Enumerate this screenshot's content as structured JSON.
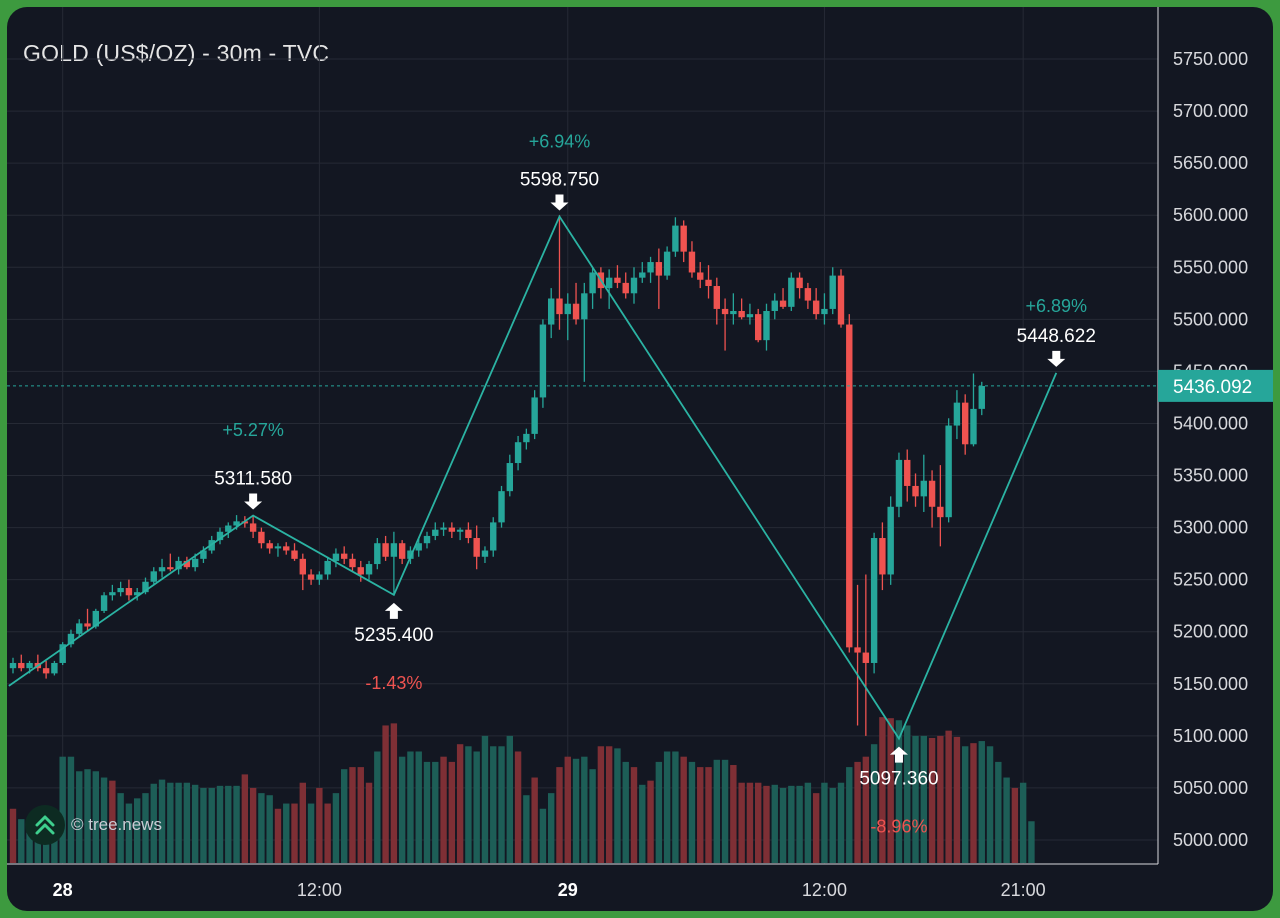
{
  "colors": {
    "background": "#131722",
    "up": "#26a69a",
    "down": "#ef5350",
    "volume_up": "#1d5e57",
    "volume_down": "#7e2f35",
    "grid": "#262a35",
    "zigzag": "#2bb3a3",
    "last_price_bg": "#26a69a"
  },
  "watermark": {
    "icon": "double-chevron-up-icon",
    "text": "© tree.news"
  },
  "chart_data": {
    "type": "candlestick",
    "title": "GOLD (US$/OZ) - 30m - TVC",
    "ylim": [
      4980,
      5780
    ],
    "y_ticks": [
      "5750.000",
      "5700.000",
      "5650.000",
      "5600.000",
      "5550.000",
      "5500.000",
      "5450.000",
      "5400.000",
      "5350.000",
      "5300.000",
      "5250.000",
      "5200.000",
      "5150.000",
      "5100.000",
      "5050.000",
      "5000.000"
    ],
    "x_ticks": [
      {
        "label": "28",
        "index": 6,
        "bold": true
      },
      {
        "label": "12:00",
        "index": 37,
        "bold": false
      },
      {
        "label": "29",
        "index": 67,
        "bold": true
      },
      {
        "label": "12:00",
        "index": 98,
        "bold": false
      },
      {
        "label": "21:00",
        "index": 122,
        "bold": false
      }
    ],
    "last_price": {
      "label": "5436.092",
      "value": 5436.092
    },
    "zigzag": [
      {
        "index": -0.5,
        "value": 5148
      },
      {
        "index": 29,
        "value": 5311.58
      },
      {
        "index": 46,
        "value": 5235.4
      },
      {
        "index": 66,
        "value": 5598.75
      },
      {
        "index": 107,
        "value": 5097.36
      },
      {
        "index": 126,
        "value": 5448.622
      }
    ],
    "pivots": [
      {
        "label": "5311.580",
        "index": 29,
        "value": 5311.58,
        "direction": "down",
        "label_position": "above"
      },
      {
        "label": "5235.400",
        "index": 46,
        "value": 5235.4,
        "direction": "up",
        "label_position": "below"
      },
      {
        "label": "5598.750",
        "index": 66,
        "value": 5598.75,
        "direction": "down",
        "label_position": "above"
      },
      {
        "label": "5097.360",
        "index": 107,
        "value": 5097.36,
        "direction": "up",
        "label_position": "below"
      },
      {
        "label": "5448.622",
        "index": 126,
        "value": 5448.622,
        "direction": "down",
        "label_position": "above"
      }
    ],
    "swing_labels": [
      {
        "label": "+5.27%",
        "index": 29,
        "value": 5388,
        "positive": true
      },
      {
        "label": "-1.43%",
        "index": 46,
        "value": 5145,
        "positive": false
      },
      {
        "label": "+6.94%",
        "index": 66,
        "value": 5665,
        "positive": true
      },
      {
        "label": "-8.96%",
        "index": 107,
        "value": 5007,
        "positive": false
      },
      {
        "label": "+6.89%",
        "index": 126,
        "value": 5507,
        "positive": true
      }
    ],
    "candles": [
      [
        5165,
        5175,
        5160,
        5170
      ],
      [
        5170,
        5178,
        5162,
        5165
      ],
      [
        5165,
        5172,
        5160,
        5170
      ],
      [
        5170,
        5178,
        5162,
        5165
      ],
      [
        5165,
        5172,
        5155,
        5160
      ],
      [
        5160,
        5172,
        5158,
        5170
      ],
      [
        5170,
        5190,
        5168,
        5188
      ],
      [
        5188,
        5202,
        5185,
        5198
      ],
      [
        5198,
        5212,
        5195,
        5208
      ],
      [
        5208,
        5222,
        5200,
        5205
      ],
      [
        5205,
        5222,
        5203,
        5220
      ],
      [
        5220,
        5238,
        5218,
        5235
      ],
      [
        5235,
        5245,
        5230,
        5238
      ],
      [
        5238,
        5248,
        5234,
        5242
      ],
      [
        5242,
        5250,
        5230,
        5235
      ],
      [
        5235,
        5242,
        5230,
        5238
      ],
      [
        5238,
        5252,
        5236,
        5248
      ],
      [
        5248,
        5262,
        5246,
        5258
      ],
      [
        5258,
        5270,
        5252,
        5262
      ],
      [
        5262,
        5275,
        5258,
        5260
      ],
      [
        5260,
        5272,
        5255,
        5268
      ],
      [
        5268,
        5272,
        5260,
        5262
      ],
      [
        5262,
        5275,
        5258,
        5270
      ],
      [
        5270,
        5282,
        5266,
        5278
      ],
      [
        5278,
        5292,
        5275,
        5288
      ],
      [
        5288,
        5300,
        5284,
        5296
      ],
      [
        5296,
        5305,
        5290,
        5302
      ],
      [
        5302,
        5312,
        5298,
        5306
      ],
      [
        5306,
        5311,
        5300,
        5304
      ],
      [
        5304,
        5311,
        5290,
        5296
      ],
      [
        5296,
        5300,
        5280,
        5285
      ],
      [
        5285,
        5288,
        5275,
        5280
      ],
      [
        5280,
        5285,
        5272,
        5282
      ],
      [
        5282,
        5286,
        5274,
        5278
      ],
      [
        5278,
        5285,
        5268,
        5270
      ],
      [
        5270,
        5275,
        5240,
        5255
      ],
      [
        5255,
        5260,
        5245,
        5250
      ],
      [
        5250,
        5258,
        5245,
        5255
      ],
      [
        5255,
        5272,
        5250,
        5268
      ],
      [
        5268,
        5280,
        5262,
        5275
      ],
      [
        5275,
        5282,
        5265,
        5270
      ],
      [
        5270,
        5275,
        5258,
        5262
      ],
      [
        5262,
        5268,
        5248,
        5255
      ],
      [
        5255,
        5268,
        5250,
        5265
      ],
      [
        5265,
        5290,
        5260,
        5285
      ],
      [
        5285,
        5292,
        5268,
        5272
      ],
      [
        5272,
        5296,
        5236,
        5285
      ],
      [
        5285,
        5288,
        5265,
        5270
      ],
      [
        5270,
        5282,
        5265,
        5278
      ],
      [
        5278,
        5290,
        5272,
        5285
      ],
      [
        5285,
        5296,
        5280,
        5292
      ],
      [
        5292,
        5305,
        5288,
        5298
      ],
      [
        5298,
        5305,
        5292,
        5300
      ],
      [
        5300,
        5305,
        5290,
        5296
      ],
      [
        5296,
        5300,
        5288,
        5298
      ],
      [
        5298,
        5305,
        5285,
        5290
      ],
      [
        5290,
        5302,
        5260,
        5272
      ],
      [
        5272,
        5282,
        5266,
        5278
      ],
      [
        5278,
        5310,
        5272,
        5305
      ],
      [
        5305,
        5340,
        5300,
        5335
      ],
      [
        5335,
        5370,
        5330,
        5362
      ],
      [
        5362,
        5388,
        5355,
        5382
      ],
      [
        5382,
        5395,
        5375,
        5390
      ],
      [
        5390,
        5432,
        5385,
        5425
      ],
      [
        5425,
        5500,
        5415,
        5495
      ],
      [
        5495,
        5530,
        5482,
        5520
      ],
      [
        5520,
        5600,
        5490,
        5505
      ],
      [
        5505,
        5525,
        5480,
        5515
      ],
      [
        5515,
        5535,
        5495,
        5500
      ],
      [
        5500,
        5535,
        5440,
        5525
      ],
      [
        5525,
        5550,
        5510,
        5545
      ],
      [
        5545,
        5550,
        5520,
        5530
      ],
      [
        5530,
        5548,
        5510,
        5540
      ],
      [
        5540,
        5552,
        5530,
        5535
      ],
      [
        5535,
        5545,
        5520,
        5525
      ],
      [
        5525,
        5550,
        5515,
        5540
      ],
      [
        5540,
        5555,
        5535,
        5545
      ],
      [
        5545,
        5560,
        5535,
        5555
      ],
      [
        5555,
        5568,
        5510,
        5542
      ],
      [
        5542,
        5570,
        5538,
        5565
      ],
      [
        5565,
        5598,
        5560,
        5590
      ],
      [
        5590,
        5595,
        5555,
        5565
      ],
      [
        5565,
        5575,
        5540,
        5545
      ],
      [
        5545,
        5555,
        5530,
        5538
      ],
      [
        5538,
        5552,
        5520,
        5532
      ],
      [
        5532,
        5540,
        5495,
        5510
      ],
      [
        5510,
        5520,
        5470,
        5505
      ],
      [
        5505,
        5525,
        5495,
        5508
      ],
      [
        5508,
        5520,
        5500,
        5502
      ],
      [
        5502,
        5515,
        5495,
        5505
      ],
      [
        5505,
        5510,
        5478,
        5480
      ],
      [
        5480,
        5515,
        5470,
        5508
      ],
      [
        5508,
        5525,
        5500,
        5518
      ],
      [
        5518,
        5530,
        5510,
        5512
      ],
      [
        5512,
        5545,
        5508,
        5540
      ],
      [
        5540,
        5545,
        5520,
        5530
      ],
      [
        5530,
        5535,
        5510,
        5518
      ],
      [
        5518,
        5530,
        5500,
        5505
      ],
      [
        5505,
        5525,
        5495,
        5510
      ],
      [
        5510,
        5550,
        5505,
        5542
      ],
      [
        5542,
        5548,
        5492,
        5495
      ],
      [
        5495,
        5505,
        5180,
        5185
      ],
      [
        5185,
        5245,
        5110,
        5180
      ],
      [
        5180,
        5255,
        5100,
        5170
      ],
      [
        5170,
        5295,
        5160,
        5290
      ],
      [
        5290,
        5305,
        5240,
        5255
      ],
      [
        5255,
        5330,
        5245,
        5320
      ],
      [
        5320,
        5372,
        5310,
        5365
      ],
      [
        5365,
        5375,
        5325,
        5340
      ],
      [
        5340,
        5352,
        5320,
        5330
      ],
      [
        5330,
        5370,
        5315,
        5345
      ],
      [
        5345,
        5355,
        5300,
        5320
      ],
      [
        5320,
        5360,
        5282,
        5310
      ],
      [
        5310,
        5405,
        5305,
        5398
      ],
      [
        5398,
        5432,
        5385,
        5420
      ],
      [
        5420,
        5428,
        5370,
        5380
      ],
      [
        5380,
        5448,
        5378,
        5414
      ],
      [
        5414,
        5440,
        5408,
        5436
      ]
    ],
    "volume_bars": [
      [
        5030,
        false
      ],
      [
        5020,
        true
      ],
      [
        5015,
        true
      ],
      [
        5020,
        true
      ],
      [
        5022,
        true
      ],
      [
        5025,
        true
      ],
      [
        5080,
        true
      ],
      [
        5080,
        true
      ],
      [
        5066,
        true
      ],
      [
        5068,
        true
      ],
      [
        5066,
        true
      ],
      [
        5060,
        true
      ],
      [
        5057,
        false
      ],
      [
        5045,
        true
      ],
      [
        5035,
        true
      ],
      [
        5040,
        true
      ],
      [
        5045,
        true
      ],
      [
        5054,
        true
      ],
      [
        5058,
        true
      ],
      [
        5055,
        true
      ],
      [
        5055,
        true
      ],
      [
        5055,
        true
      ],
      [
        5053,
        true
      ],
      [
        5050,
        true
      ],
      [
        5050,
        true
      ],
      [
        5052,
        true
      ],
      [
        5052,
        true
      ],
      [
        5052,
        true
      ],
      [
        5063,
        false
      ],
      [
        5050,
        false
      ],
      [
        5045,
        true
      ],
      [
        5043,
        true
      ],
      [
        5030,
        false
      ],
      [
        5035,
        true
      ],
      [
        5035,
        false
      ],
      [
        5055,
        false
      ],
      [
        5035,
        true
      ],
      [
        5050,
        false
      ],
      [
        5035,
        false
      ],
      [
        5045,
        true
      ],
      [
        5068,
        true
      ],
      [
        5070,
        false
      ],
      [
        5070,
        false
      ],
      [
        5055,
        false
      ],
      [
        5085,
        true
      ],
      [
        5110,
        false
      ],
      [
        5112,
        false
      ],
      [
        5080,
        true
      ],
      [
        5085,
        true
      ],
      [
        5085,
        true
      ],
      [
        5075,
        true
      ],
      [
        5075,
        true
      ],
      [
        5080,
        false
      ],
      [
        5075,
        false
      ],
      [
        5092,
        false
      ],
      [
        5090,
        true
      ],
      [
        5085,
        true
      ],
      [
        5100,
        true
      ],
      [
        5090,
        true
      ],
      [
        5090,
        true
      ],
      [
        5100,
        true
      ],
      [
        5085,
        false
      ],
      [
        5043,
        true
      ],
      [
        5060,
        false
      ],
      [
        5030,
        true
      ],
      [
        5045,
        true
      ],
      [
        5070,
        false
      ],
      [
        5080,
        false
      ],
      [
        5078,
        true
      ],
      [
        5080,
        true
      ],
      [
        5068,
        true
      ],
      [
        5090,
        false
      ],
      [
        5090,
        false
      ],
      [
        5088,
        true
      ],
      [
        5075,
        true
      ],
      [
        5070,
        false
      ],
      [
        5053,
        true
      ],
      [
        5057,
        false
      ],
      [
        5075,
        true
      ],
      [
        5085,
        true
      ],
      [
        5085,
        true
      ],
      [
        5080,
        false
      ],
      [
        5075,
        true
      ],
      [
        5070,
        false
      ],
      [
        5070,
        false
      ],
      [
        5077,
        true
      ],
      [
        5077,
        true
      ],
      [
        5072,
        false
      ],
      [
        5055,
        false
      ],
      [
        5055,
        false
      ],
      [
        5055,
        false
      ],
      [
        5052,
        false
      ],
      [
        5053,
        true
      ],
      [
        5050,
        true
      ],
      [
        5052,
        true
      ],
      [
        5052,
        true
      ],
      [
        5055,
        true
      ],
      [
        5045,
        false
      ],
      [
        5055,
        true
      ],
      [
        5050,
        true
      ],
      [
        5055,
        true
      ],
      [
        5070,
        true
      ],
      [
        5075,
        false
      ],
      [
        5080,
        false
      ],
      [
        5092,
        true
      ],
      [
        5118,
        false
      ],
      [
        5117,
        false
      ],
      [
        5115,
        true
      ],
      [
        5110,
        true
      ],
      [
        5100,
        true
      ],
      [
        5100,
        true
      ],
      [
        5098,
        false
      ],
      [
        5100,
        false
      ],
      [
        5105,
        false
      ],
      [
        5099,
        false
      ],
      [
        5090,
        true
      ],
      [
        5093,
        false
      ],
      [
        5095,
        true
      ],
      [
        5090,
        true
      ],
      [
        5075,
        true
      ],
      [
        5060,
        true
      ],
      [
        5050,
        false
      ],
      [
        5055,
        true
      ],
      [
        5018,
        true
      ]
    ]
  }
}
